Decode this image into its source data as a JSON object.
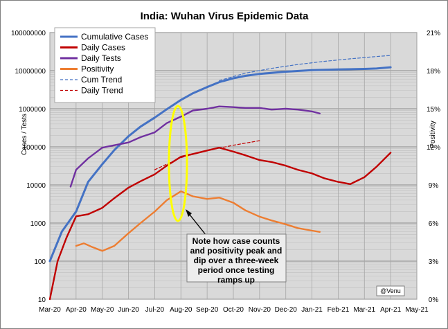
{
  "chart_data": {
    "type": "line",
    "title": "India: Wuhan Virus Epidemic Data",
    "ylabel_left": "Cases / Tests",
    "ylabel_right": "Positivity",
    "y_left_scale": "log",
    "ylim_left": [
      10,
      100000000
    ],
    "ylim_right": [
      0,
      21
    ],
    "y_left_ticks": [
      "10",
      "100",
      "1000",
      "10000",
      "100000",
      "1000000",
      "10000000",
      "100000000"
    ],
    "y_right_ticks": [
      "0%",
      "3%",
      "6%",
      "9%",
      "12%",
      "15%",
      "18%",
      "21%"
    ],
    "x_ticks": [
      "Mar-20",
      "Apr-20",
      "May-20",
      "Jun-20",
      "Jul-20",
      "Aug-20",
      "Sep-20",
      "Oct-20",
      "Nov-20",
      "Dec-20",
      "Jan-21",
      "Feb-21",
      "Mar-21",
      "Apr-21",
      "May-21"
    ],
    "grid": true,
    "legend_position": "top-left",
    "series": [
      {
        "name": "Cumulative Cases",
        "color": "#4472c4",
        "style": "solid",
        "axis": "left",
        "x": [
          "2020-03-01",
          "2020-03-15",
          "2020-04-01",
          "2020-04-15",
          "2020-05-01",
          "2020-05-15",
          "2020-06-01",
          "2020-06-15",
          "2020-07-01",
          "2020-07-15",
          "2020-08-01",
          "2020-08-15",
          "2020-09-01",
          "2020-09-15",
          "2020-10-01",
          "2020-10-15",
          "2020-11-01",
          "2020-12-01",
          "2021-01-01",
          "2021-02-01",
          "2021-03-01",
          "2021-03-15",
          "2021-04-01"
        ],
        "values": [
          100,
          600,
          2000,
          12000,
          35000,
          82000,
          190000,
          340000,
          585000,
          970000,
          1700000,
          2550000,
          3700000,
          5000000,
          6300000,
          7300000,
          8200000,
          9400000,
          10300000,
          10750000,
          11100000,
          11400000,
          12300000
        ]
      },
      {
        "name": "Daily Cases",
        "color": "#c00000",
        "style": "solid",
        "axis": "left",
        "x": [
          "2020-03-01",
          "2020-03-10",
          "2020-03-20",
          "2020-04-01",
          "2020-04-15",
          "2020-05-01",
          "2020-05-15",
          "2020-06-01",
          "2020-06-15",
          "2020-07-01",
          "2020-07-15",
          "2020-08-01",
          "2020-08-15",
          "2020-09-01",
          "2020-09-15",
          "2020-10-01",
          "2020-10-15",
          "2020-11-01",
          "2020-11-15",
          "2020-12-01",
          "2020-12-15",
          "2021-01-01",
          "2021-01-15",
          "2021-02-01",
          "2021-02-15",
          "2021-03-01",
          "2021-03-15",
          "2021-04-01"
        ],
        "values": [
          10,
          100,
          400,
          1500,
          1700,
          2500,
          4500,
          8500,
          12500,
          19000,
          32000,
          55000,
          65000,
          80000,
          95000,
          75000,
          60000,
          45000,
          40000,
          32000,
          25000,
          20000,
          15000,
          12000,
          10500,
          16000,
          30000,
          70000
        ]
      },
      {
        "name": "Daily Tests",
        "color": "#7030a0",
        "style": "solid",
        "axis": "left",
        "x": [
          "2020-03-25",
          "2020-04-01",
          "2020-04-15",
          "2020-05-01",
          "2020-05-15",
          "2020-06-01",
          "2020-06-15",
          "2020-07-01",
          "2020-07-15",
          "2020-08-01",
          "2020-08-15",
          "2020-09-01",
          "2020-09-15",
          "2020-10-01",
          "2020-10-15",
          "2020-11-01",
          "2020-11-15",
          "2020-12-01",
          "2020-12-15",
          "2021-01-01",
          "2021-01-10"
        ],
        "values": [
          9000,
          25000,
          50000,
          95000,
          110000,
          130000,
          180000,
          240000,
          420000,
          620000,
          900000,
          1000000,
          1150000,
          1100000,
          1050000,
          1050000,
          950000,
          1000000,
          950000,
          850000,
          750000
        ]
      },
      {
        "name": "Positivity",
        "color": "#ed7d31",
        "style": "solid",
        "axis": "right",
        "x": [
          "2020-04-01",
          "2020-04-10",
          "2020-04-20",
          "2020-05-01",
          "2020-05-15",
          "2020-06-01",
          "2020-06-15",
          "2020-07-01",
          "2020-07-15",
          "2020-08-01",
          "2020-08-15",
          "2020-09-01",
          "2020-09-15",
          "2020-10-01",
          "2020-10-15",
          "2020-11-01",
          "2020-11-15",
          "2020-12-01",
          "2020-12-15",
          "2021-01-01",
          "2021-01-10"
        ],
        "values": [
          4.2,
          4.4,
          4.1,
          3.8,
          4.2,
          5.2,
          6.0,
          6.9,
          7.8,
          8.5,
          8.1,
          7.9,
          8.0,
          7.6,
          7.0,
          6.5,
          6.2,
          5.9,
          5.6,
          5.4,
          5.3
        ]
      },
      {
        "name": "Cum Trend",
        "color": "#4472c4",
        "style": "dashed",
        "axis": "left",
        "x": [
          "2020-09-15",
          "2020-10-15",
          "2020-11-15",
          "2020-12-15",
          "2021-01-15",
          "2021-02-15",
          "2021-03-15",
          "2021-04-01"
        ],
        "values": [
          5500000,
          8600000,
          11500000,
          14500000,
          17500000,
          20500000,
          23500000,
          25000000
        ]
      },
      {
        "name": "Daily Trend",
        "color": "#c00000",
        "style": "dashed",
        "axis": "left",
        "x": [
          "2020-07-01",
          "2020-08-01",
          "2020-09-01",
          "2020-10-01",
          "2020-11-01"
        ],
        "values": [
          25000,
          52000,
          80000,
          110000,
          145000
        ]
      }
    ],
    "annotation": {
      "lines": [
        "Note how case counts",
        "and positivity  peak and",
        "dip over a three-week",
        "period once testing",
        "ramps up"
      ],
      "credit": "@Venu",
      "highlight_date": "2020-07-28"
    }
  }
}
